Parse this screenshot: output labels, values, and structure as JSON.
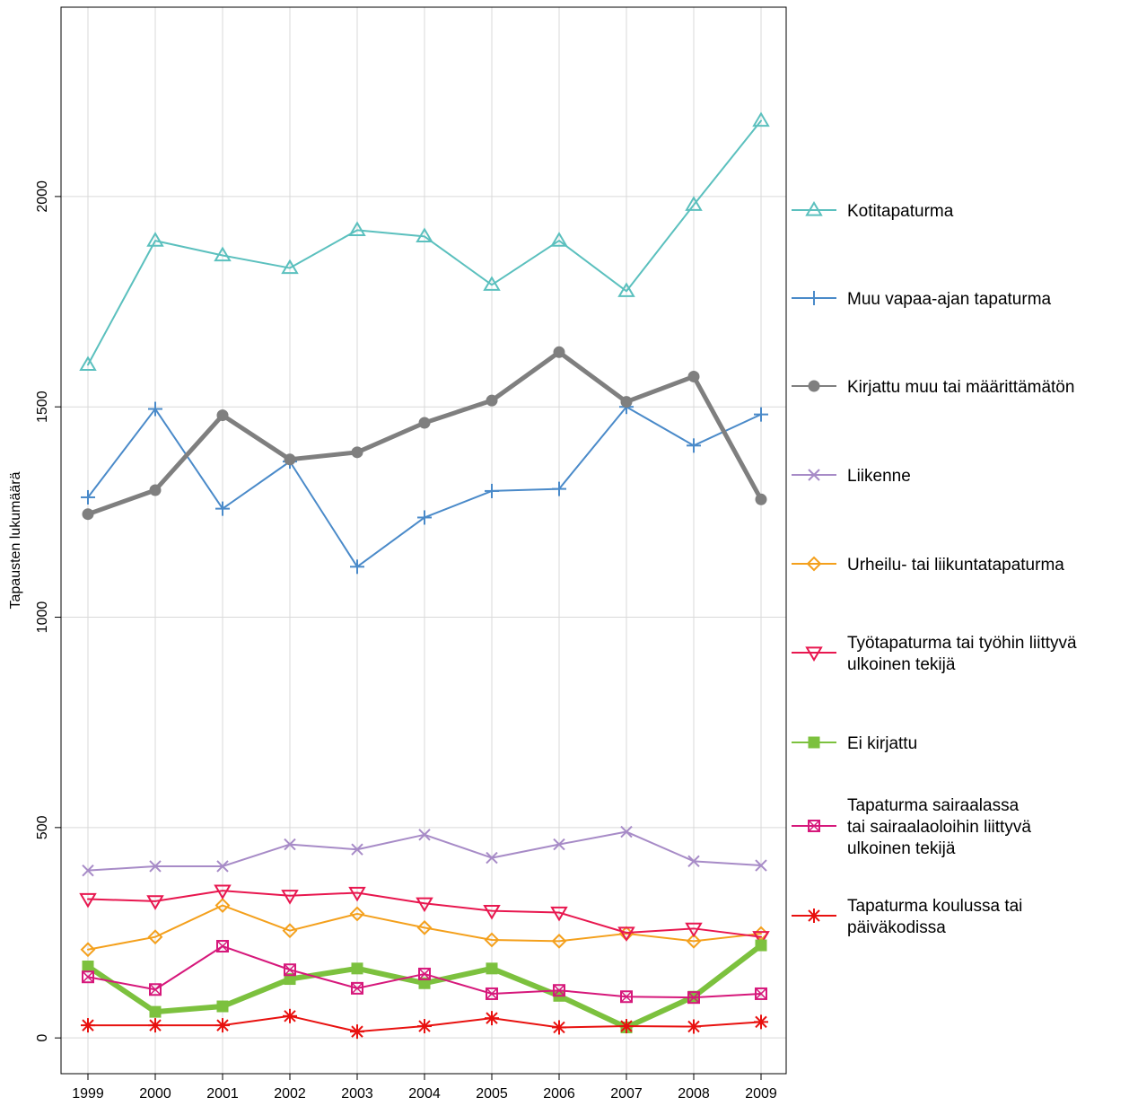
{
  "chart_data": {
    "type": "line",
    "title": "",
    "xlabel": "",
    "ylabel": "Tapausten lukumäärä",
    "x": [
      1999,
      2000,
      2001,
      2002,
      2003,
      2004,
      2005,
      2006,
      2007,
      2008,
      2009
    ],
    "ylim": [
      -85,
      2450
    ],
    "yticks": [
      0,
      500,
      1000,
      1500,
      2000
    ],
    "grid": true,
    "legend_position": "right",
    "series": [
      {
        "name": "Kotitapaturma",
        "color": "#5bc0be",
        "marker": "triangle-up",
        "width": 2,
        "values": [
          1600,
          1895,
          1860,
          1830,
          1920,
          1905,
          1790,
          1895,
          1775,
          1980,
          2180
        ]
      },
      {
        "name": "Muu vapaa-ajan tapaturma",
        "color": "#4a8ac9",
        "marker": "plus",
        "width": 2,
        "values": [
          1285,
          1495,
          1258,
          1370,
          1120,
          1237,
          1300,
          1305,
          1500,
          1408,
          1482
        ]
      },
      {
        "name": "Kirjattu muu tai määrittämätön",
        "color": "#7f7f7f",
        "marker": "circle",
        "width": 5,
        "values": [
          1245,
          1302,
          1480,
          1375,
          1392,
          1462,
          1515,
          1630,
          1512,
          1572,
          1280
        ]
      },
      {
        "name": "Liikenne",
        "color": "#a78bc7",
        "marker": "x",
        "width": 2,
        "values": [
          398,
          408,
          408,
          460,
          448,
          483,
          428,
          460,
          490,
          420,
          410
        ]
      },
      {
        "name": "Urheilu- tai liikuntatapaturma",
        "color": "#f4a01c",
        "marker": "diamond",
        "width": 2,
        "values": [
          210,
          240,
          315,
          255,
          295,
          262,
          233,
          230,
          248,
          230,
          248
        ]
      },
      {
        "name": "Työtapaturma tai työhin liittyvä ulkoinen tekijä",
        "color": "#e8174f",
        "marker": "triangle-down",
        "width": 2,
        "values": [
          330,
          325,
          350,
          338,
          345,
          320,
          302,
          298,
          250,
          260,
          240
        ]
      },
      {
        "name": "Ei kirjattu",
        "color": "#7cc13e",
        "marker": "square",
        "width": 6,
        "values": [
          170,
          62,
          75,
          140,
          165,
          130,
          165,
          100,
          25,
          98,
          220
        ]
      },
      {
        "name": "Tapaturma sairaalassa tai sairaalaoloihin liittyvä ulkoinen tekijä",
        "color": "#d6187b",
        "marker": "square-x",
        "width": 2,
        "values": [
          145,
          115,
          218,
          162,
          118,
          152,
          105,
          113,
          98,
          96,
          105
        ]
      },
      {
        "name": "Tapaturma koulussa tai päiväkodissa",
        "color": "#e8110f",
        "marker": "asterisk",
        "width": 2,
        "values": [
          30,
          30,
          30,
          52,
          15,
          28,
          47,
          25,
          28,
          27,
          38
        ]
      }
    ],
    "legend_lines": [
      [
        "Kotitapaturma"
      ],
      [
        "Muu vapaa-ajan tapaturma"
      ],
      [
        "Kirjattu muu tai määrittämätön"
      ],
      [
        "Liikenne"
      ],
      [
        "Urheilu- tai liikuntatapaturma"
      ],
      [
        "Työtapaturma tai työhin liittyvä",
        "ulkoinen tekijä"
      ],
      [
        "Ei kirjattu"
      ],
      [
        "Tapaturma sairaalassa",
        "tai sairaalaoloihin liittyvä",
        "ulkoinen tekijä"
      ],
      [
        "Tapaturma koulussa tai",
        "päiväkodissa"
      ]
    ]
  }
}
